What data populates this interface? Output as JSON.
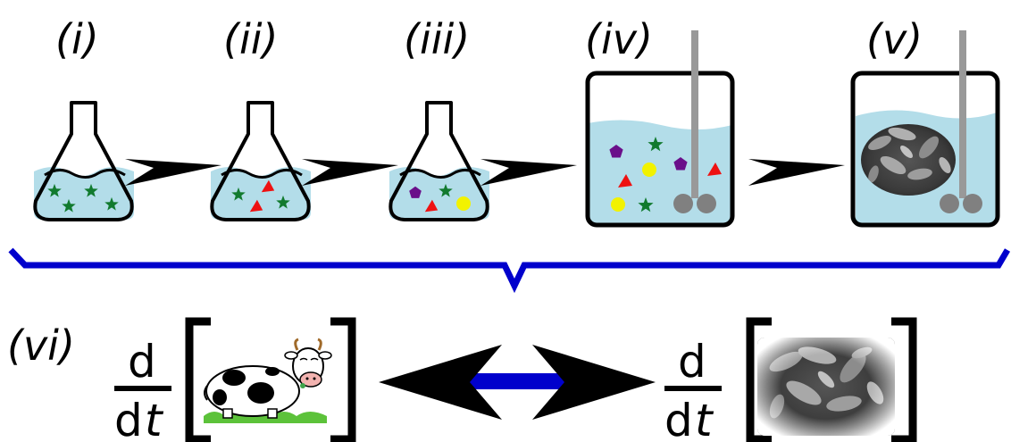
{
  "stages": [
    {
      "id": "i",
      "label": "(i)"
    },
    {
      "id": "ii",
      "label": "(ii)"
    },
    {
      "id": "iii",
      "label": "(iii)"
    },
    {
      "id": "iv",
      "label": "(iv)"
    },
    {
      "id": "v",
      "label": "(v)"
    }
  ],
  "bottom": {
    "label": "(vi)",
    "derivative_left": {
      "numerator": "d",
      "denominator_d": "d",
      "denominator_var": "t"
    },
    "derivative_right": {
      "numerator": "d",
      "denominator_d": "d",
      "denominator_var": "t"
    },
    "left_image": "cow-cartoon",
    "right_image": "microbe-micrograph"
  },
  "colors": {
    "liquid": "#b3dde9",
    "bracket_blue": "#0000cc",
    "star_green": "#117a2e",
    "triangle_red": "#ee1111",
    "pentagon_purple": "#6a0f8a",
    "circle_yellow": "#f2f200",
    "rod_gray": "#999999",
    "ball_gray": "#808080"
  }
}
